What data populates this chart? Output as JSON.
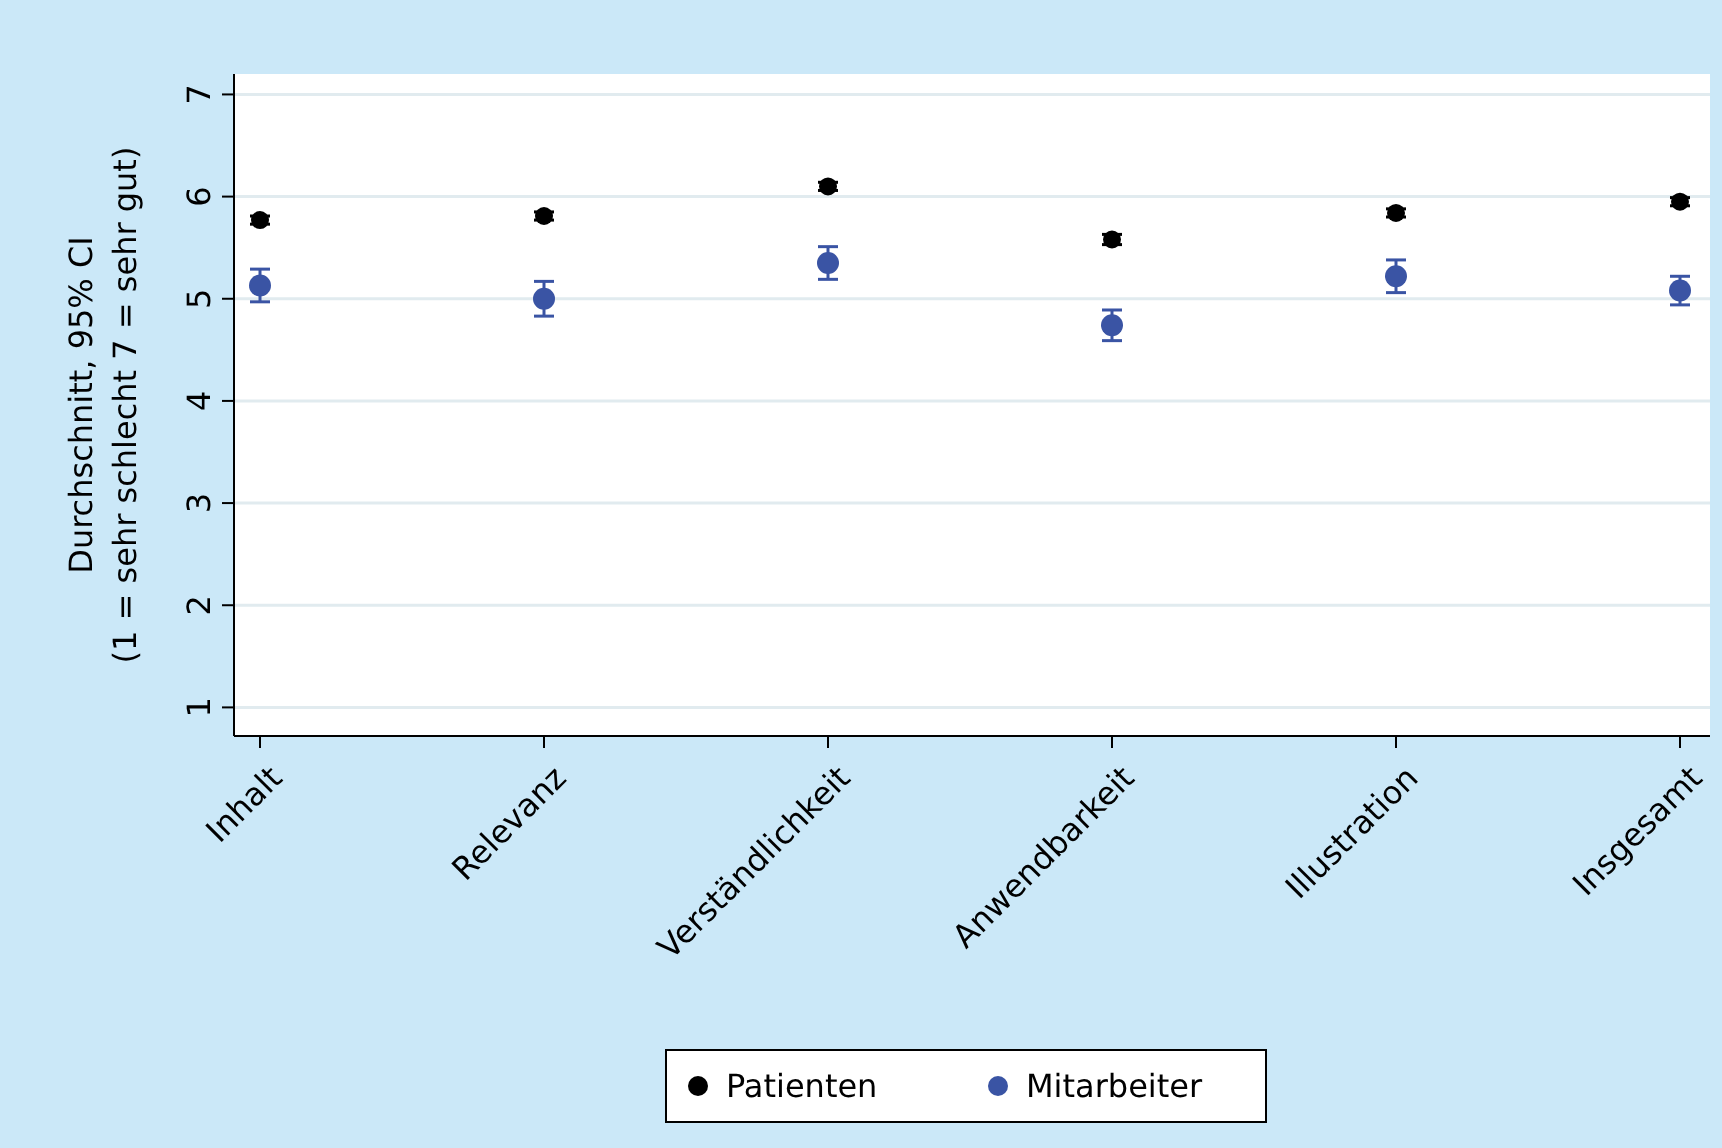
{
  "chart_data": {
    "type": "scatter",
    "ylabel": "Durchschnitt, 95% CI\n(1 = sehr schlecht 7 = sehr gut)",
    "categories": [
      "Inhalt",
      "Relevanz",
      "Verständlichkeit",
      "Anwendbarkeit",
      "Illustration",
      "Insgesamt"
    ],
    "series": [
      {
        "name": "Patienten",
        "color": "#000000",
        "values": [
          5.77,
          5.81,
          6.1,
          5.58,
          5.84,
          5.95
        ],
        "errors": [
          0.04,
          0.04,
          0.04,
          0.05,
          0.04,
          0.04
        ]
      },
      {
        "name": "Mitarbeiter",
        "color": "#3a54a4",
        "values": [
          5.13,
          5.0,
          5.35,
          4.74,
          5.22,
          5.08
        ],
        "errors": [
          0.16,
          0.17,
          0.16,
          0.15,
          0.16,
          0.14
        ]
      }
    ],
    "ylim": [
      0.72,
      7.2
    ],
    "yticks": [
      1,
      2,
      3,
      4,
      5,
      6,
      7
    ],
    "grid": "y",
    "legend": "bottom",
    "marker": "circle"
  }
}
